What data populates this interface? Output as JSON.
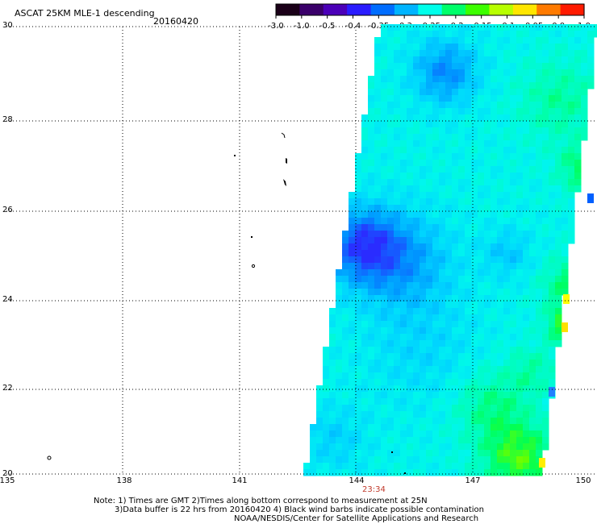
{
  "header": {
    "title": "ASCAT 25KM MLE-1 descending",
    "date": "20160420"
  },
  "colorbar": {
    "labels": [
      "-3.0",
      "-1.0",
      "-0.5",
      "-0.4",
      "-0.35",
      "-0.3",
      "-0.25",
      "-0.2",
      "-0.15",
      "-0.1",
      "-0.05",
      "0.0",
      "1.0"
    ],
    "colors": [
      "#1a0018",
      "#3a006a",
      "#4b00b8",
      "#2a1cff",
      "#006dff",
      "#00b4ff",
      "#00ffea",
      "#00ff6a",
      "#3cff00",
      "#b8ff00",
      "#ffe600",
      "#ff7a00",
      "#ff1a00"
    ]
  },
  "map": {
    "lat_labels": [
      "30",
      "28",
      "26",
      "24",
      "22",
      "20"
    ],
    "lon_labels": [
      "135",
      "138",
      "141",
      "144",
      "147",
      "150"
    ],
    "time_label": "23:34"
  },
  "footer": {
    "note1": "Note: 1) Times are GMT 2)Times along bottom correspond to measurement at 25N",
    "note2": "3)Data buffer is 22 hrs from 20160420 4) Black wind barbs indicate possible contamination",
    "credit": "NOAA/NESDIS/Center for Satellite Applications and Research"
  }
}
